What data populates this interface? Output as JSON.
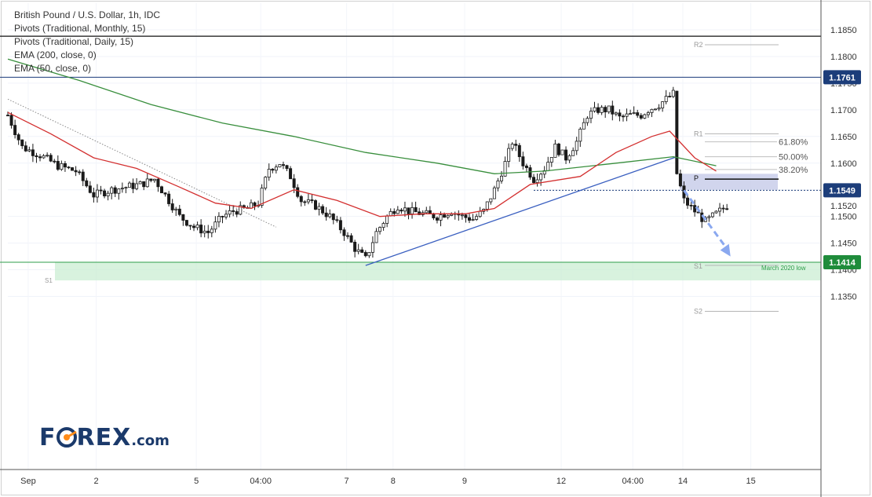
{
  "legend": {
    "line1": "British Pound / U.S. Dollar, 1h, IDC",
    "line2": "Pivots (Traditional, Monthly, 15)",
    "line3": "Pivots (Traditional, Daily, 15)",
    "line4": "EMA (200, close, 0)",
    "line5": "EMA (50, close, 0)"
  },
  "logo": {
    "part1": "F",
    "part2": "REX",
    "tld": ".com"
  },
  "colors": {
    "ema50": "#d32f2f",
    "ema200": "#388e3c",
    "trendline": "#3a5fc0",
    "resistance": "#1a3a7a",
    "support": "#2e9e4a",
    "supportZone": "#c8ecd0",
    "pivotZone": "#c5cae9",
    "badgeBlue": "#1c3d7a",
    "badgeGreen": "#1f8c3b",
    "forecastArrow": "#8aa8ef",
    "candle": "#1a1a1a"
  },
  "chart_data": {
    "type": "candlestick",
    "symbol": "British Pound / U.S. Dollar, 1h, IDC",
    "ylim": [
      1.13,
      1.189
    ],
    "y_ticks": [
      "1.1850",
      "1.1800",
      "1.1750",
      "1.1700",
      "1.1650",
      "1.1600",
      "1.1550",
      "1.1500",
      "1.1450",
      "1.1400",
      "1.1350"
    ],
    "x_ticks": [
      "Sep",
      "2",
      "5",
      "04:00",
      "7",
      "8",
      "9",
      "12",
      "04:00",
      "14",
      "15"
    ],
    "close_path": [
      [
        0,
        1.169
      ],
      [
        4,
        1.163
      ],
      [
        9,
        1.1615
      ],
      [
        14,
        1.1595
      ],
      [
        19,
        1.1585
      ],
      [
        24,
        1.154
      ],
      [
        29,
        1.155
      ],
      [
        33,
        1.1555
      ],
      [
        37,
        1.156
      ],
      [
        41,
        1.157
      ],
      [
        44,
        1.154
      ],
      [
        48,
        1.15
      ],
      [
        52,
        1.148
      ],
      [
        56,
        1.147
      ],
      [
        60,
        1.15
      ],
      [
        63,
        1.151
      ],
      [
        67,
        1.1515
      ],
      [
        70,
        1.1525
      ],
      [
        73,
        1.159
      ],
      [
        76,
        1.16
      ],
      [
        79,
        1.1575
      ],
      [
        82,
        1.153
      ],
      [
        86,
        1.152
      ],
      [
        90,
        1.15
      ],
      [
        94,
        1.147
      ],
      [
        97,
        1.144
      ],
      [
        100,
        1.142
      ],
      [
        103,
        1.147
      ],
      [
        106,
        1.15
      ],
      [
        109,
        1.152
      ],
      [
        112,
        1.151
      ],
      [
        116,
        1.1505
      ],
      [
        120,
        1.15
      ],
      [
        124,
        1.151
      ],
      [
        127,
        1.15
      ],
      [
        130,
        1.1495
      ],
      [
        133,
        1.151
      ],
      [
        136,
        1.155
      ],
      [
        139,
        1.16
      ],
      [
        141,
        1.164
      ],
      [
        144,
        1.16
      ],
      [
        147,
        1.157
      ],
      [
        150,
        1.159
      ],
      [
        153,
        1.163
      ],
      [
        156,
        1.161
      ],
      [
        159,
        1.164
      ],
      [
        162,
        1.169
      ],
      [
        165,
        1.17
      ],
      [
        168,
        1.17
      ],
      [
        171,
        1.1685
      ],
      [
        174,
        1.169
      ],
      [
        177,
        1.169
      ],
      [
        179,
        1.17
      ],
      [
        182,
        1.171
      ],
      [
        184,
        1.172
      ],
      [
        186,
        1.173
      ],
      [
        187,
        1.158
      ],
      [
        189,
        1.153
      ],
      [
        192,
        1.151
      ],
      [
        195,
        1.149
      ],
      [
        198,
        1.1505
      ],
      [
        201,
        1.152
      ]
    ],
    "ema50_path": [
      [
        0,
        1.1695
      ],
      [
        12,
        1.1655
      ],
      [
        24,
        1.161
      ],
      [
        36,
        1.159
      ],
      [
        48,
        1.1555
      ],
      [
        58,
        1.1525
      ],
      [
        68,
        1.1515
      ],
      [
        80,
        1.155
      ],
      [
        92,
        1.153
      ],
      [
        104,
        1.15
      ],
      [
        116,
        1.1505
      ],
      [
        128,
        1.1505
      ],
      [
        136,
        1.1515
      ],
      [
        146,
        1.156
      ],
      [
        160,
        1.1575
      ],
      [
        170,
        1.162
      ],
      [
        180,
        1.165
      ],
      [
        185,
        1.166
      ],
      [
        192,
        1.161
      ],
      [
        198,
        1.1585
      ]
    ],
    "ema200_path": [
      [
        0,
        1.1795
      ],
      [
        20,
        1.1755
      ],
      [
        40,
        1.171
      ],
      [
        60,
        1.1675
      ],
      [
        80,
        1.165
      ],
      [
        100,
        1.162
      ],
      [
        120,
        1.16
      ],
      [
        136,
        1.158
      ],
      [
        150,
        1.1585
      ],
      [
        170,
        1.16
      ],
      [
        186,
        1.1612
      ],
      [
        198,
        1.1595
      ]
    ],
    "resistance_level": 1.1761,
    "resistance_label": "1.1761",
    "support_level": 1.1414,
    "support_label": "1.1414",
    "support_zone": [
      1.138,
      1.1414
    ],
    "support_zone_label": "S1",
    "current_level": 1.1549,
    "current_label": "1.1549",
    "current_price_label": "1.1520",
    "monthly_pivots": [
      {
        "name": "R2",
        "value": 1.1822
      },
      {
        "name": "R1",
        "value": 1.1655
      },
      {
        "name": "P",
        "value": 1.157
      },
      {
        "name": "S1",
        "value": 1.1414
      },
      {
        "name": "S2",
        "value": 1.1322
      }
    ],
    "daily_pivot_box": [
      1.155,
      1.158
    ],
    "fib_levels": [
      {
        "label": "61.80%",
        "value": 1.164
      },
      {
        "label": "50.00%",
        "value": 1.1612
      },
      {
        "label": "38.20%",
        "value": 1.1588
      }
    ],
    "trendline": [
      [
        100,
        1.1408
      ],
      [
        187,
        1.1612
      ]
    ],
    "downtrend_line": [
      [
        0,
        1.172
      ],
      [
        75,
        1.148
      ]
    ],
    "forecast_arrow": [
      [
        189,
        1.1549
      ],
      [
        202,
        1.1425
      ]
    ],
    "annotation": "March 2020 low"
  }
}
